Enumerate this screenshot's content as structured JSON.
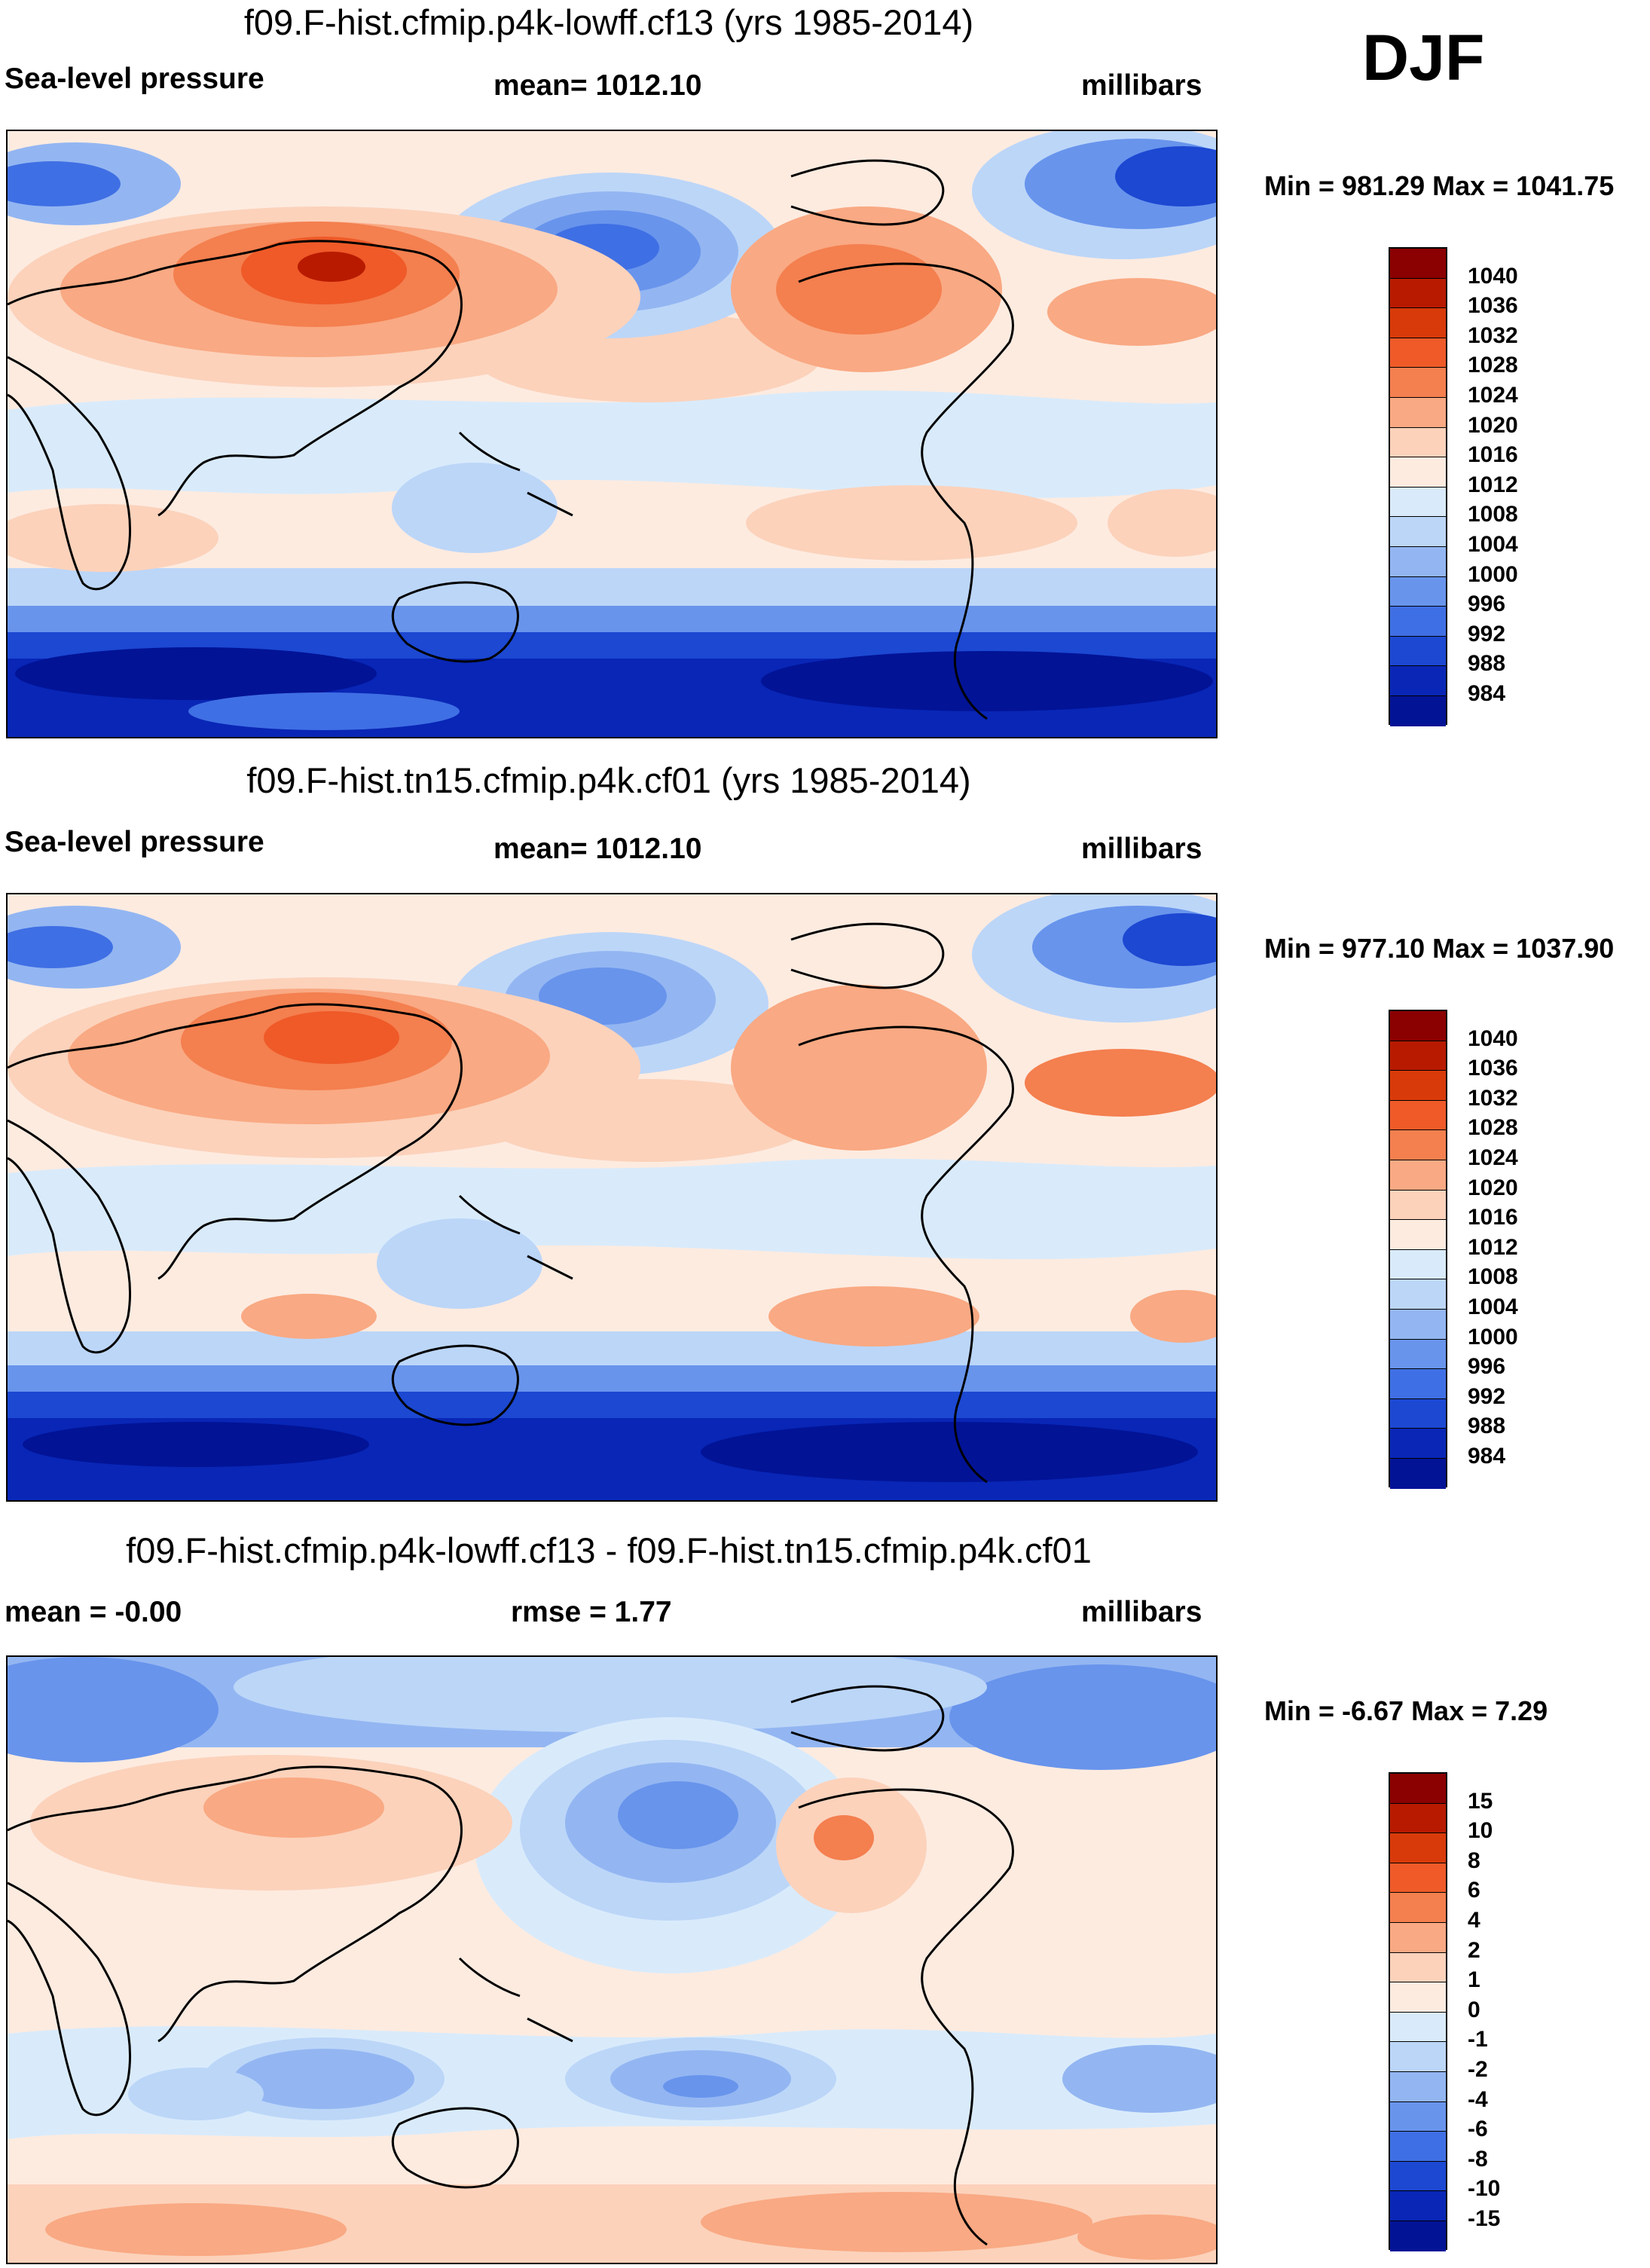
{
  "season": "DJF",
  "panels": [
    {
      "id": "top",
      "title": "f09.F-hist.cfmip.p4k-lowff.cf13 (yrs 1985-2014)",
      "left_label": "Sea-level pressure",
      "center_label": "mean= 1012.10",
      "right_label": "millibars",
      "minmax": "Min = 981.29 Max = 1041.75"
    },
    {
      "id": "middle",
      "title": "f09.F-hist.tn15.cfmip.p4k.cf01 (yrs 1985-2014)",
      "left_label": "Sea-level pressure",
      "center_label": "mean= 1012.10",
      "right_label": "millibars",
      "minmax": "Min = 977.10 Max = 1037.90"
    },
    {
      "id": "difference",
      "title": "f09.F-hist.cfmip.p4k-lowff.cf13 - f09.F-hist.tn15.cfmip.p4k.cf01",
      "left_label": "mean =  -0.00",
      "center_label": "rmse =   1.77",
      "right_label": "millibars",
      "minmax": "Min =  -6.67 Max =   7.29"
    }
  ],
  "colorbars": {
    "pressure": {
      "labels": [
        "1040",
        "1036",
        "1032",
        "1028",
        "1024",
        "1020",
        "1016",
        "1012",
        "1008",
        "1004",
        "1000",
        "996",
        "992",
        "988",
        "984"
      ],
      "colors": [
        "#8b0000",
        "#b81a00",
        "#d83a0a",
        "#ef5a28",
        "#f47f4f",
        "#f9a983",
        "#fcd2bb",
        "#fdebe0",
        "#d9ebfb",
        "#bcd6f8",
        "#93b6f2",
        "#6894ec",
        "#3f6fe4",
        "#1c48d2",
        "#0926b6",
        "#021396"
      ]
    },
    "difference": {
      "labels": [
        "15",
        "10",
        "8",
        "6",
        "4",
        "2",
        "1",
        "0",
        "-1",
        "-2",
        "-4",
        "-6",
        "-8",
        "-10",
        "-15"
      ],
      "colors": [
        "#8b0000",
        "#b81a00",
        "#d83a0a",
        "#ef5a28",
        "#f47f4f",
        "#f9a983",
        "#fcd2bb",
        "#fdebe0",
        "#d9ebfb",
        "#bcd6f8",
        "#93b6f2",
        "#6894ec",
        "#3f6fe4",
        "#1c48d2",
        "#0926b6",
        "#021396"
      ]
    }
  }
}
